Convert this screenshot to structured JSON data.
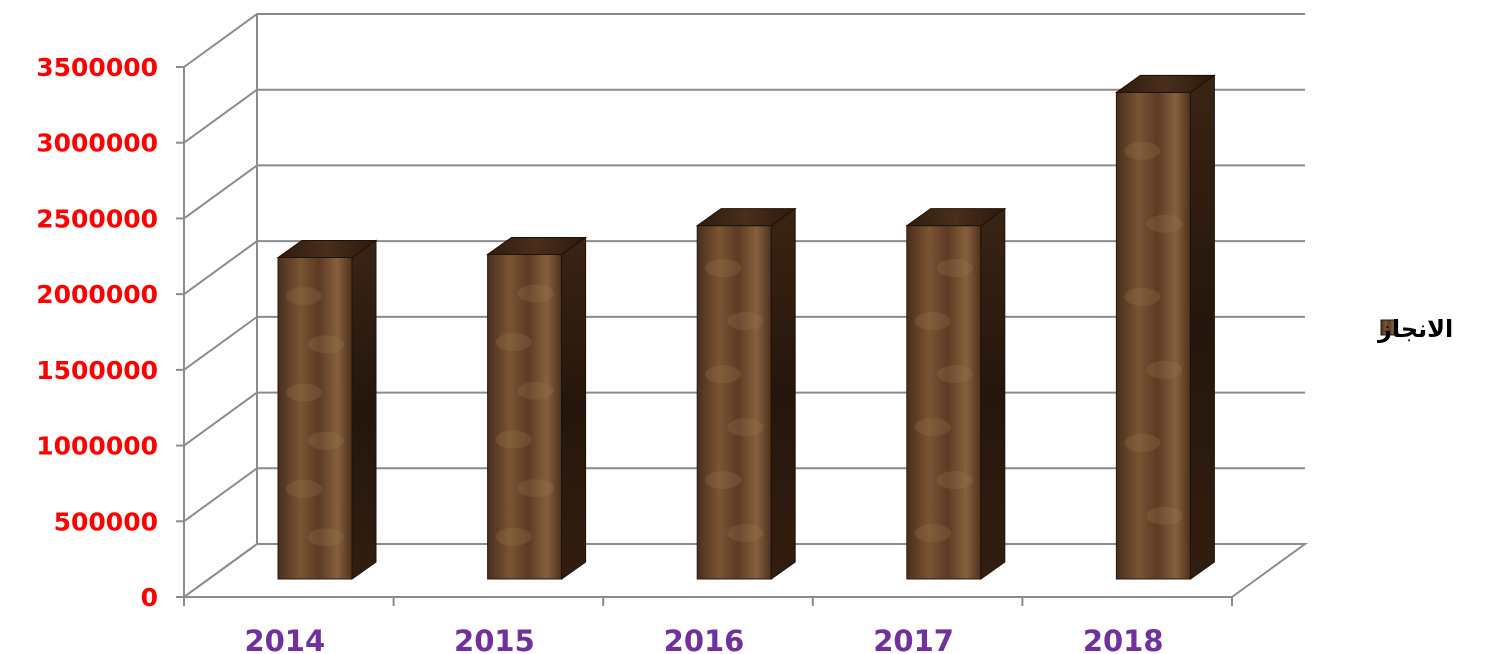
{
  "chart_data": {
    "type": "bar",
    "categories": [
      "2014",
      "2015",
      "2016",
      "2017",
      "2018"
    ],
    "series": [
      {
        "name": "الانجاز",
        "values": [
          2110000,
          2130000,
          2320000,
          2320000,
          3200000
        ]
      }
    ],
    "y_ticks": [
      "0",
      "500000",
      "1000000",
      "1500000",
      "2000000",
      "2500000",
      "3000000",
      "3500000"
    ],
    "ylim": [
      0,
      3500000
    ],
    "grid": true,
    "legend_position": "right",
    "style": "3d",
    "colors": {
      "bar_front": "#5a3a24",
      "bar_side": "#2e1c10",
      "bar_top": "#3a2416",
      "y_tick_color": "#ff0000",
      "x_tick_color": "#7030a0",
      "grid_color": "#8c8c8c"
    }
  }
}
